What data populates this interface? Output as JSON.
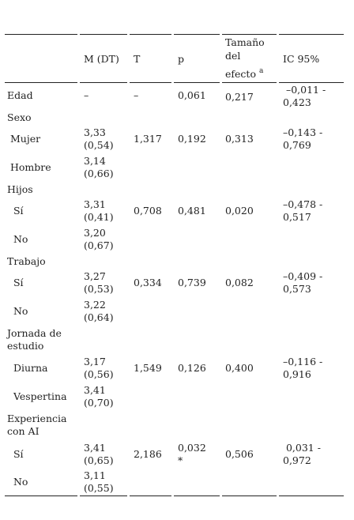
{
  "header": {
    "mdt": "M (DT)",
    "t": "T",
    "p": "p",
    "efecto_1": "Tamaño",
    "efecto_2": "del",
    "efecto_3": "efecto",
    "efecto_sup": "a",
    "ic": "IC 95%"
  },
  "rows": [
    {
      "label": "Edad",
      "m1": "–",
      "m2": "",
      "t": "–",
      "p1": "0,061",
      "p2": "",
      "ef": "0,217",
      "ic1": " –0,011 -",
      "ic2": "0,423"
    },
    {
      "label": "Sexo"
    },
    {
      "label": " Mujer",
      "m1": "3,33",
      "m2": "(0,54)",
      "t": "1,317",
      "p1": "0,192",
      "ef": "0,313",
      "ic1": "–0,143 -",
      "ic2": "0,769"
    },
    {
      "label": " Hombre",
      "m1": "3,14",
      "m2": "(0,66)"
    },
    {
      "label": "Hijos"
    },
    {
      "label": "  Sí",
      "m1": "3,31",
      "m2": "(0,41)",
      "t": "0,708",
      "p1": "0,481",
      "ef": "0,020",
      "ic1": "–0,478 -",
      "ic2": "0,517"
    },
    {
      "label": "  No",
      "m1": "3,20",
      "m2": "(0,67)"
    },
    {
      "label": "Trabajo"
    },
    {
      "label": "  Sí",
      "m1": "3,27",
      "m2": "(0,53)",
      "t": "0,334",
      "p1": "0,739",
      "ef": "0,082",
      "ic1": "–0,409 -",
      "ic2": "0,573"
    },
    {
      "label": "  No",
      "m1": "3,22",
      "m2": "(0,64)"
    },
    {
      "label1": "Jornada de",
      "label2": "estudio"
    },
    {
      "label": "  Diurna",
      "m1": "3,17",
      "m2": "(0,56)",
      "t": "1,549",
      "p1": "0,126",
      "ef": "0,400",
      "ic1": "–0,116 -",
      "ic2": "0,916"
    },
    {
      "label": "  Vespertina",
      "m1": "3,41",
      "m2": "(0,70)"
    },
    {
      "label1": "Experiencia",
      "label2": "con AI"
    },
    {
      "label": "  Sí",
      "m1": "3,41",
      "m2": "(0,65)",
      "t": "2,186",
      "p1": "0,032",
      "p2": "*",
      "ef": "0,506",
      "ic1": " 0,031 -",
      "ic2": "0,972"
    },
    {
      "label": "  No",
      "m1": "3,11",
      "m2": "(0,55)"
    }
  ]
}
